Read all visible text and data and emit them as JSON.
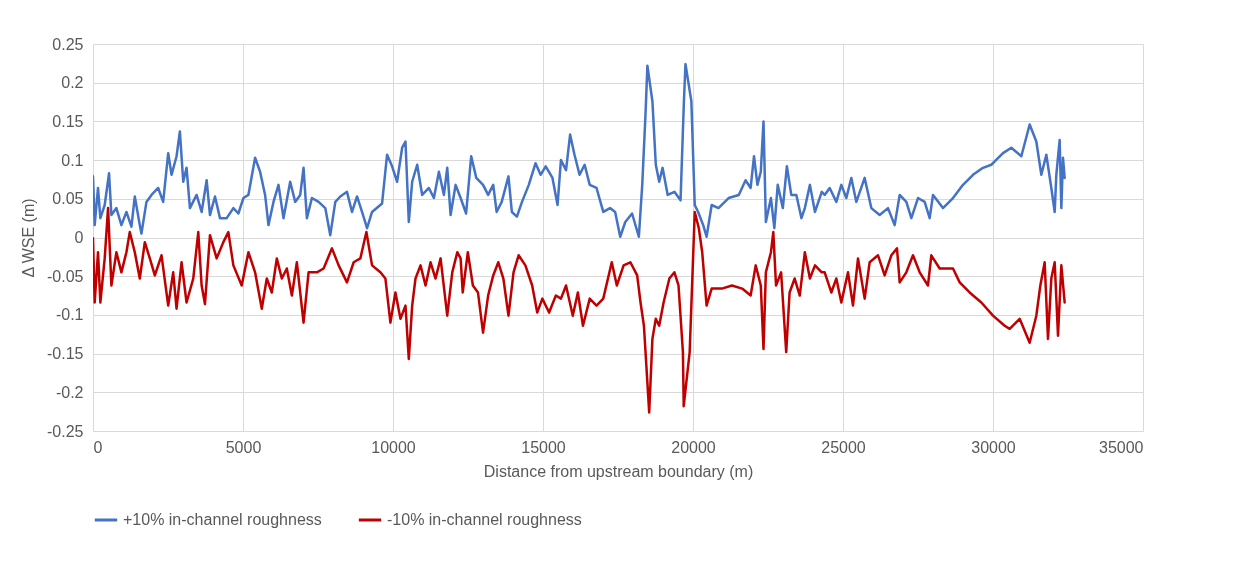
{
  "chart_data": {
    "type": "line",
    "xlabel": "Distance from upstream boundary (m)",
    "ylabel": "Δ WSE (m)",
    "xlim": [
      0,
      35000
    ],
    "xticks": [
      0,
      5000,
      10000,
      15000,
      20000,
      25000,
      30000,
      35000
    ],
    "ylim": [
      -0.25,
      0.25
    ],
    "yticks": [
      -0.25,
      -0.2,
      -0.15,
      -0.1,
      -0.05,
      0,
      0.05,
      0.1,
      0.15,
      0.2,
      0.25
    ],
    "grid": true,
    "legend": "bottom",
    "line_style": "solid",
    "series": [
      {
        "name": "+10% in-channel roughness",
        "color": "#4472c4",
        "x": [
          0,
          56,
          167,
          245,
          390,
          535,
          613,
          780,
          947,
          1114,
          1281,
          1393,
          1560,
          1615,
          1782,
          1950,
          2172,
          2339,
          2507,
          2618,
          2785,
          2896,
          3008,
          3119,
          3231,
          3453,
          3621,
          3788,
          3899,
          4066,
          4233,
          4456,
          4679,
          4846,
          5013,
          5180,
          5403,
          5570,
          5737,
          5849,
          6016,
          6183,
          6350,
          6573,
          6740,
          6907,
          7018,
          7130,
          7297,
          7520,
          7743,
          7909,
          8077,
          8244,
          8466,
          8634,
          8801,
          8968,
          9135,
          9302,
          9636,
          9803,
          9970,
          10137,
          10305,
          10416,
          10527,
          10639,
          10806,
          10973,
          11196,
          11363,
          11530,
          11697,
          11808,
          11920,
          12087,
          12254,
          12437,
          12607,
          12776,
          13002,
          13171,
          13341,
          13454,
          13623,
          13849,
          13962,
          14131,
          14300,
          14526,
          14752,
          14921,
          15090,
          15316,
          15485,
          15598,
          15768,
          15903,
          16050,
          16219,
          16388,
          16558,
          16784,
          17009,
          17235,
          17405,
          17574,
          17743,
          17969,
          18195,
          18308,
          18421,
          18480,
          18647,
          18760,
          18873,
          18986,
          19156,
          19381,
          19585,
          19697,
          19750,
          19945,
          20058,
          20171,
          20340,
          20453,
          20622,
          20848,
          21187,
          21526,
          21752,
          21921,
          22034,
          22147,
          22260,
          22350,
          22429,
          22598,
          22711,
          22824,
          22994,
          23129,
          23276,
          23445,
          23615,
          23728,
          23897,
          24066,
          24292,
          24389,
          24556,
          24778,
          24944,
          25111,
          25278,
          25444,
          25722,
          25944,
          26222,
          26500,
          26722,
          26889,
          27111,
          27278,
          27500,
          27722,
          27889,
          28000,
          28333,
          28667,
          29000,
          29333,
          29667,
          29944,
          30333,
          30611,
          30944,
          31222,
          31444,
          31611,
          31778,
          31944,
          32056,
          32111,
          32222,
          32278,
          32333,
          32389
        ],
        "values": [
          0.079,
          0.016,
          0.064,
          0.025,
          0.042,
          0.083,
          0.029,
          0.038,
          0.016,
          0.033,
          0.014,
          0.053,
          0.016,
          0.005,
          0.046,
          0.055,
          0.064,
          0.046,
          0.109,
          0.081,
          0.105,
          0.137,
          0.072,
          0.09,
          0.038,
          0.055,
          0.033,
          0.074,
          0.029,
          0.053,
          0.025,
          0.025,
          0.038,
          0.031,
          0.051,
          0.055,
          0.103,
          0.085,
          0.055,
          0.016,
          0.046,
          0.068,
          0.025,
          0.072,
          0.046,
          0.055,
          0.09,
          0.025,
          0.051,
          0.046,
          0.038,
          0.003,
          0.046,
          0.053,
          0.059,
          0.033,
          0.053,
          0.033,
          0.012,
          0.033,
          0.044,
          0.107,
          0.092,
          0.072,
          0.116,
          0.124,
          0.02,
          0.072,
          0.094,
          0.055,
          0.064,
          0.051,
          0.085,
          0.055,
          0.09,
          0.029,
          0.068,
          0.051,
          0.031,
          0.105,
          0.077,
          0.068,
          0.055,
          0.068,
          0.033,
          0.046,
          0.079,
          0.033,
          0.027,
          0.046,
          0.068,
          0.096,
          0.081,
          0.092,
          0.077,
          0.042,
          0.1,
          0.087,
          0.133,
          0.107,
          0.081,
          0.094,
          0.068,
          0.064,
          0.033,
          0.038,
          0.033,
          0.001,
          0.02,
          0.031,
          0.001,
          0.068,
          0.163,
          0.222,
          0.176,
          0.094,
          0.072,
          0.09,
          0.055,
          0.059,
          0.048,
          0.176,
          0.224,
          0.176,
          0.042,
          0.033,
          0.016,
          0.001,
          0.042,
          0.038,
          0.051,
          0.055,
          0.074,
          0.064,
          0.105,
          0.068,
          0.085,
          0.15,
          0.02,
          0.051,
          0.012,
          0.068,
          0.038,
          0.092,
          0.055,
          0.055,
          0.025,
          0.038,
          0.068,
          0.033,
          0.059,
          0.055,
          0.064,
          0.046,
          0.068,
          0.051,
          0.077,
          0.046,
          0.077,
          0.038,
          0.029,
          0.038,
          0.016,
          0.055,
          0.046,
          0.025,
          0.051,
          0.046,
          0.025,
          0.055,
          0.038,
          0.051,
          0.068,
          0.081,
          0.09,
          0.094,
          0.109,
          0.116,
          0.105,
          0.146,
          0.124,
          0.081,
          0.107,
          0.064,
          0.033,
          0.081,
          0.126,
          0.038,
          0.103,
          0.077
        ]
      },
      {
        "name": "-10% in-channel roughness",
        "color": "#c00000",
        "x": [
          0,
          56,
          167,
          245,
          390,
          502,
          613,
          780,
          947,
          1114,
          1225,
          1393,
          1560,
          1727,
          1894,
          2061,
          2284,
          2507,
          2673,
          2785,
          2952,
          3119,
          3342,
          3509,
          3621,
          3732,
          3899,
          4122,
          4345,
          4512,
          4679,
          4957,
          5180,
          5403,
          5626,
          5793,
          5960,
          6127,
          6294,
          6461,
          6629,
          6796,
          7018,
          7186,
          7464,
          7687,
          7965,
          8188,
          8466,
          8689,
          8912,
          9113,
          9302,
          9580,
          9747,
          9914,
          10081,
          10249,
          10416,
          10527,
          10639,
          10750,
          10917,
          11085,
          11252,
          11419,
          11586,
          11808,
          11976,
          12143,
          12254,
          12324,
          12494,
          12663,
          12832,
          13002,
          13171,
          13341,
          13510,
          13679,
          13849,
          14018,
          14187,
          14413,
          14639,
          14808,
          14978,
          15203,
          15429,
          15598,
          15768,
          15993,
          16162,
          16332,
          16558,
          16784,
          17009,
          17292,
          17461,
          17687,
          17913,
          18139,
          18251,
          18364,
          18540,
          18647,
          18760,
          18873,
          19020,
          19212,
          19381,
          19517,
          19664,
          19690,
          19889,
          20058,
          20194,
          20307,
          20453,
          20622,
          20961,
          21300,
          21639,
          21921,
          22090,
          22260,
          22350,
          22429,
          22598,
          22677,
          22768,
          22937,
          23107,
          23220,
          23389,
          23559,
          23728,
          23897,
          24066,
          24292,
          24389,
          24611,
          24778,
          24944,
          25167,
          25333,
          25500,
          25722,
          25889,
          26167,
          26389,
          26611,
          26800,
          26889,
          27111,
          27333,
          27556,
          27833,
          27944,
          28222,
          28667,
          28889,
          29222,
          29611,
          30000,
          30389,
          30556,
          30889,
          31222,
          31444,
          31578,
          31722,
          31833,
          31944,
          32056,
          32167,
          32278,
          32389
        ],
        "values": [
          -0.001,
          -0.084,
          -0.019,
          -0.084,
          -0.027,
          0.038,
          -0.062,
          -0.019,
          -0.045,
          -0.019,
          0.007,
          -0.019,
          -0.053,
          -0.006,
          -0.027,
          -0.049,
          -0.023,
          -0.088,
          -0.045,
          -0.092,
          -0.032,
          -0.084,
          -0.053,
          0.007,
          -0.062,
          -0.086,
          0.003,
          -0.027,
          -0.006,
          0.007,
          -0.036,
          -0.062,
          -0.019,
          -0.045,
          -0.092,
          -0.053,
          -0.071,
          -0.027,
          -0.053,
          -0.04,
          -0.075,
          -0.032,
          -0.11,
          -0.045,
          -0.045,
          -0.04,
          -0.014,
          -0.036,
          -0.058,
          -0.032,
          -0.027,
          0.007,
          -0.036,
          -0.045,
          -0.053,
          -0.11,
          -0.071,
          -0.105,
          -0.088,
          -0.157,
          -0.088,
          -0.053,
          -0.036,
          -0.062,
          -0.032,
          -0.053,
          -0.027,
          -0.101,
          -0.045,
          -0.019,
          -0.027,
          -0.071,
          -0.019,
          -0.062,
          -0.071,
          -0.123,
          -0.075,
          -0.049,
          -0.032,
          -0.053,
          -0.101,
          -0.045,
          -0.023,
          -0.036,
          -0.062,
          -0.097,
          -0.079,
          -0.097,
          -0.075,
          -0.079,
          -0.062,
          -0.101,
          -0.071,
          -0.114,
          -0.079,
          -0.088,
          -0.079,
          -0.032,
          -0.062,
          -0.036,
          -0.032,
          -0.049,
          -0.084,
          -0.114,
          -0.226,
          -0.131,
          -0.105,
          -0.114,
          -0.084,
          -0.053,
          -0.045,
          -0.062,
          -0.148,
          -0.218,
          -0.148,
          0.033,
          0.012,
          -0.019,
          -0.088,
          -0.066,
          -0.066,
          -0.062,
          -0.066,
          -0.075,
          -0.036,
          -0.062,
          -0.144,
          -0.045,
          -0.019,
          0.007,
          -0.062,
          -0.045,
          -0.148,
          -0.071,
          -0.053,
          -0.075,
          -0.019,
          -0.053,
          -0.036,
          -0.045,
          -0.045,
          -0.071,
          -0.053,
          -0.084,
          -0.045,
          -0.088,
          -0.027,
          -0.079,
          -0.032,
          -0.023,
          -0.049,
          -0.023,
          -0.014,
          -0.058,
          -0.045,
          -0.023,
          -0.045,
          -0.062,
          -0.023,
          -0.04,
          -0.04,
          -0.058,
          -0.071,
          -0.084,
          -0.101,
          -0.114,
          -0.118,
          -0.105,
          -0.136,
          -0.101,
          -0.062,
          -0.032,
          -0.131,
          -0.053,
          -0.032,
          -0.127,
          -0.036,
          -0.084
        ]
      }
    ]
  }
}
